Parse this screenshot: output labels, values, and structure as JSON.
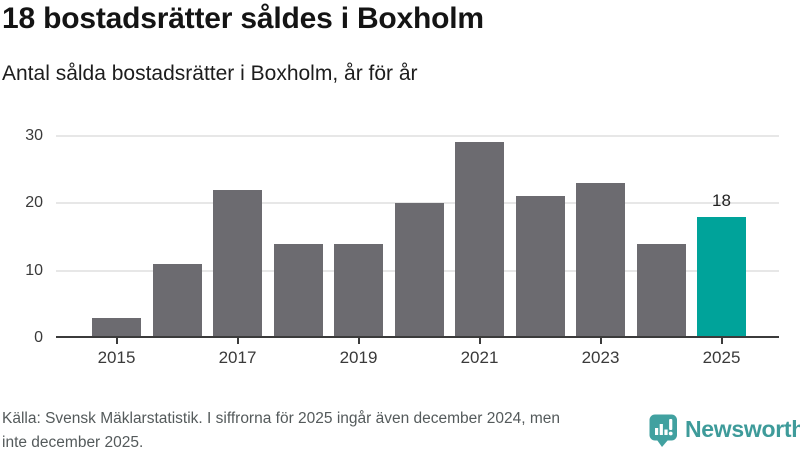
{
  "page": {
    "title": "18 bostadsrätter såldes i Boxholm",
    "subtitle": "Antal sålda bostadsrätter i Boxholm, år för år"
  },
  "footer": {
    "source_lines": [
      "Källa: Svensk Mäklarstatistik. I siffrorna för 2025 ingår även december 2024, men",
      "inte december 2025."
    ],
    "brand": "Newsworthy"
  },
  "colors": {
    "bar": "#6c6b70",
    "highlight": "#00a39a",
    "grid": "#e7e7e7",
    "axis": "#3b3b3b",
    "tick": "#3b3b3b",
    "brand_teal": "#3e9b9a"
  },
  "chart_data": {
    "type": "bar",
    "title": "18 bostadsrätter såldes i Boxholm",
    "subtitle": "Antal sålda bostadsrätter i Boxholm, år för år",
    "categories": [
      "2015",
      "2016",
      "2017",
      "2018",
      "2019",
      "2020",
      "2021",
      "2022",
      "2023",
      "2024",
      "2025"
    ],
    "values": [
      3,
      11,
      22,
      14,
      14,
      20,
      29,
      21,
      23,
      14,
      18
    ],
    "highlight_category": "2025",
    "highlight_label": "18",
    "xlabel": "",
    "ylabel": "",
    "ylim": [
      0,
      30
    ],
    "yticks": [
      0,
      10,
      20,
      30
    ],
    "xticks": [
      "2015",
      "2017",
      "2019",
      "2021",
      "2023",
      "2025"
    ],
    "grid": "horizontal",
    "legend": "none"
  }
}
